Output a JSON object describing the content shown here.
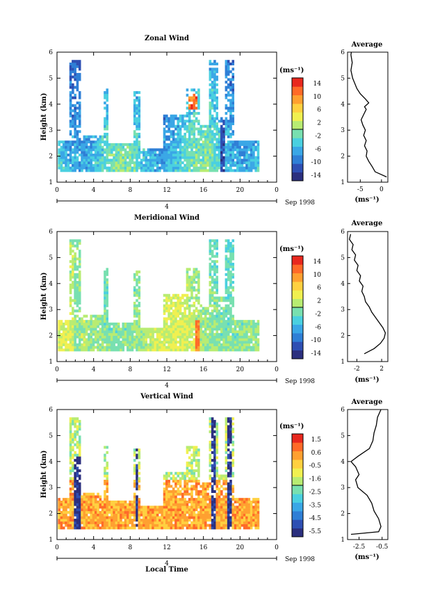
{
  "panels": [
    {
      "title": "Zonal Wind",
      "ylabel": "Height (km)",
      "yticks": [
        "1",
        "2",
        "3",
        "4",
        "5",
        "6"
      ],
      "xticks": [
        "0",
        "4",
        "8",
        "12",
        "16",
        "20",
        "0"
      ],
      "day_label": "4",
      "date_label": "Sep 1998",
      "xlabel": "",
      "unit_label": "(ms⁻¹)",
      "colorbar_ticks": [
        "14",
        "10",
        "6",
        "2",
        "-2",
        "-6",
        "-10",
        "-14"
      ],
      "profile_title": "Average",
      "profile_xticks": [
        "-5",
        "0"
      ],
      "profile_xlabel": "(ms⁻¹)"
    },
    {
      "title": "Meridional Wind",
      "ylabel": "Height (km)",
      "yticks": [
        "1",
        "2",
        "3",
        "4",
        "5",
        "6"
      ],
      "xticks": [
        "0",
        "4",
        "8",
        "12",
        "16",
        "20",
        "0"
      ],
      "day_label": "4",
      "date_label": "Sep 1998",
      "xlabel": "",
      "unit_label": "(ms⁻¹)",
      "colorbar_ticks": [
        "14",
        "10",
        "6",
        "2",
        "-2",
        "-6",
        "-10",
        "-14"
      ],
      "profile_title": "Average",
      "profile_xticks": [
        "-2",
        "2"
      ],
      "profile_xlabel": "(ms⁻¹)"
    },
    {
      "title": "Vertical Wind",
      "ylabel": "Height (km)",
      "yticks": [
        "1",
        "2",
        "3",
        "4",
        "5",
        "6"
      ],
      "xticks": [
        "0",
        "4",
        "8",
        "12",
        "16",
        "20",
        "0"
      ],
      "day_label": "4",
      "date_label": "Sep 1998",
      "xlabel": "Local Time",
      "unit_label": "(ms⁻¹)",
      "colorbar_ticks": [
        "1.5",
        "0.6",
        "-0.5",
        "-1.6",
        "-2.5",
        "-3.5",
        "-4.5",
        "-5.5"
      ],
      "profile_title": "Average",
      "profile_xticks": [
        "-2.5",
        "-0.5"
      ],
      "profile_xlabel": "(ms⁻¹)"
    }
  ],
  "chart_data": [
    {
      "type": "heatmap",
      "title": "Zonal Wind",
      "ylabel": "Height (km)",
      "xlim": [
        0,
        24
      ],
      "ylim": [
        1,
        6
      ],
      "color_range": [
        -16,
        16
      ],
      "color_scale": [
        "#2b2f7e",
        "#2e4fb3",
        "#2f7fd6",
        "#3aa7e6",
        "#4ad0e0",
        "#78e0b0",
        "#b8ec72",
        "#f0f050",
        "#ffd040",
        "#ffa030",
        "#ff6a28",
        "#e8281e"
      ],
      "profile": {
        "title": "Average",
        "xlim": [
          -8,
          1.5
        ],
        "ylim": [
          1,
          6
        ],
        "points": [
          [
            1.2,
            1.2
          ],
          [
            -1.5,
            1.4
          ],
          [
            -2.2,
            1.6
          ],
          [
            -3.0,
            1.8
          ],
          [
            -3.6,
            2.0
          ],
          [
            -3.4,
            2.2
          ],
          [
            -4.0,
            2.4
          ],
          [
            -3.6,
            2.6
          ],
          [
            -4.2,
            2.8
          ],
          [
            -3.8,
            3.0
          ],
          [
            -4.4,
            3.2
          ],
          [
            -4.8,
            3.4
          ],
          [
            -4.2,
            3.6
          ],
          [
            -3.6,
            3.8
          ],
          [
            -4.0,
            3.9
          ],
          [
            -3.0,
            4.05
          ],
          [
            -3.8,
            4.2
          ],
          [
            -5.0,
            4.4
          ],
          [
            -5.8,
            4.6
          ],
          [
            -6.3,
            4.8
          ],
          [
            -6.8,
            5.0
          ],
          [
            -7.2,
            5.3
          ],
          [
            -6.9,
            5.6
          ],
          [
            -7.2,
            5.9
          ],
          [
            -7.1,
            6.0
          ]
        ]
      }
    },
    {
      "type": "heatmap",
      "title": "Meridional Wind",
      "ylabel": "Height (km)",
      "xlim": [
        0,
        24
      ],
      "ylim": [
        1,
        6
      ],
      "color_range": [
        -16,
        16
      ],
      "color_scale": [
        "#2b2f7e",
        "#2e4fb3",
        "#2f7fd6",
        "#3aa7e6",
        "#4ad0e0",
        "#78e0b0",
        "#b8ec72",
        "#f0f050",
        "#ffd040",
        "#ffa030",
        "#ff6a28",
        "#e8281e"
      ],
      "profile": {
        "title": "Average",
        "xlim": [
          -3.5,
          3
        ],
        "ylim": [
          1,
          6
        ],
        "points": [
          [
            -0.8,
            1.3
          ],
          [
            0.8,
            1.5
          ],
          [
            1.8,
            1.7
          ],
          [
            2.4,
            1.9
          ],
          [
            2.6,
            2.1
          ],
          [
            2.2,
            2.3
          ],
          [
            1.6,
            2.5
          ],
          [
            1.0,
            2.7
          ],
          [
            0.4,
            2.9
          ],
          [
            0.0,
            3.1
          ],
          [
            -0.6,
            3.3
          ],
          [
            -0.8,
            3.5
          ],
          [
            -1.2,
            3.7
          ],
          [
            -1.0,
            3.9
          ],
          [
            -1.6,
            4.1
          ],
          [
            -1.4,
            4.3
          ],
          [
            -2.0,
            4.5
          ],
          [
            -1.8,
            4.7
          ],
          [
            -2.4,
            4.9
          ],
          [
            -2.2,
            5.1
          ],
          [
            -2.8,
            5.3
          ],
          [
            -2.6,
            5.5
          ],
          [
            -3.2,
            5.7
          ],
          [
            -3.0,
            5.9
          ]
        ]
      }
    },
    {
      "type": "heatmap",
      "title": "Vertical Wind",
      "ylabel": "Height (km)",
      "xlabel": "Local Time",
      "xlim": [
        0,
        24
      ],
      "ylim": [
        1,
        6
      ],
      "color_range": [
        -6,
        2
      ],
      "color_scale": [
        "#2b2f7e",
        "#2e4fb3",
        "#2f7fd6",
        "#3aa7e6",
        "#4ad0e0",
        "#78e0b0",
        "#b8ec72",
        "#f0f050",
        "#ffd040",
        "#ffa030",
        "#ff6a28",
        "#e8281e"
      ],
      "profile": {
        "title": "Average",
        "xlim": [
          -3.5,
          0
        ],
        "ylim": [
          1,
          6
        ],
        "points": [
          [
            -3.2,
            1.2
          ],
          [
            -0.8,
            1.3
          ],
          [
            -0.6,
            1.5
          ],
          [
            -0.8,
            1.8
          ],
          [
            -1.2,
            2.1
          ],
          [
            -1.4,
            2.4
          ],
          [
            -1.8,
            2.7
          ],
          [
            -2.6,
            3.0
          ],
          [
            -2.8,
            3.3
          ],
          [
            -2.5,
            3.5
          ],
          [
            -2.8,
            3.8
          ],
          [
            -3.2,
            4.0
          ],
          [
            -2.6,
            4.2
          ],
          [
            -1.6,
            4.5
          ],
          [
            -1.3,
            4.8
          ],
          [
            -1.2,
            5.1
          ],
          [
            -1.0,
            5.4
          ],
          [
            -0.9,
            5.7
          ],
          [
            -0.6,
            6.0
          ]
        ]
      }
    }
  ]
}
